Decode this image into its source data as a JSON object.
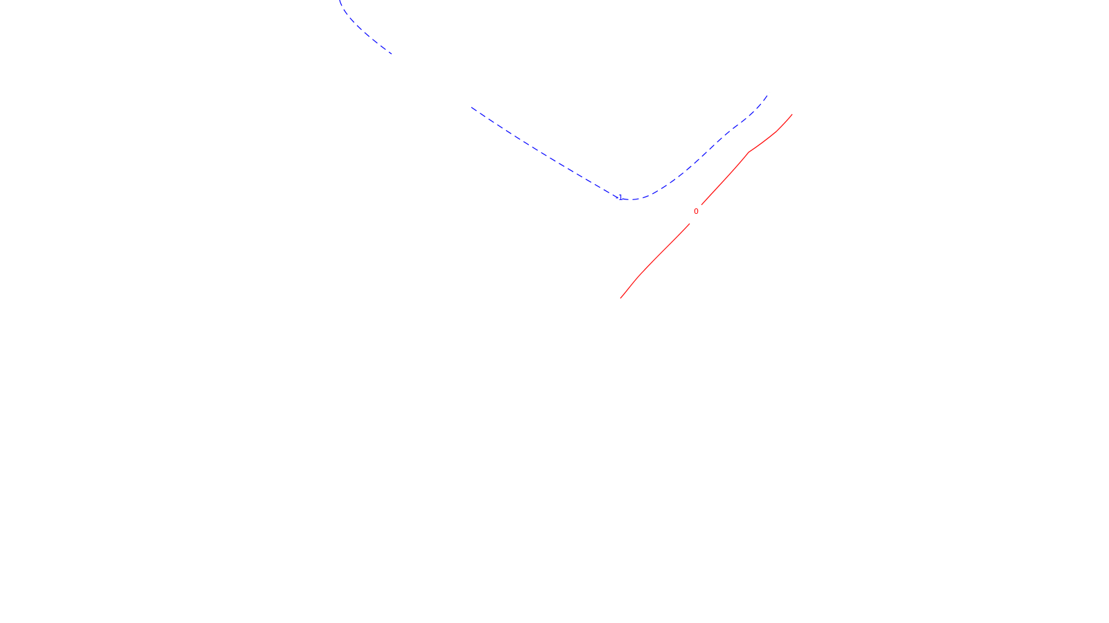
{
  "map": {
    "background_color": "#ffffff",
    "contours": [
      {
        "id": "contour-neg1",
        "label": "-1",
        "color": "#0000ff",
        "style": "dashed"
      },
      {
        "id": "contour-0",
        "label": "0",
        "color": "#ff0000",
        "style": "solid"
      }
    ]
  }
}
